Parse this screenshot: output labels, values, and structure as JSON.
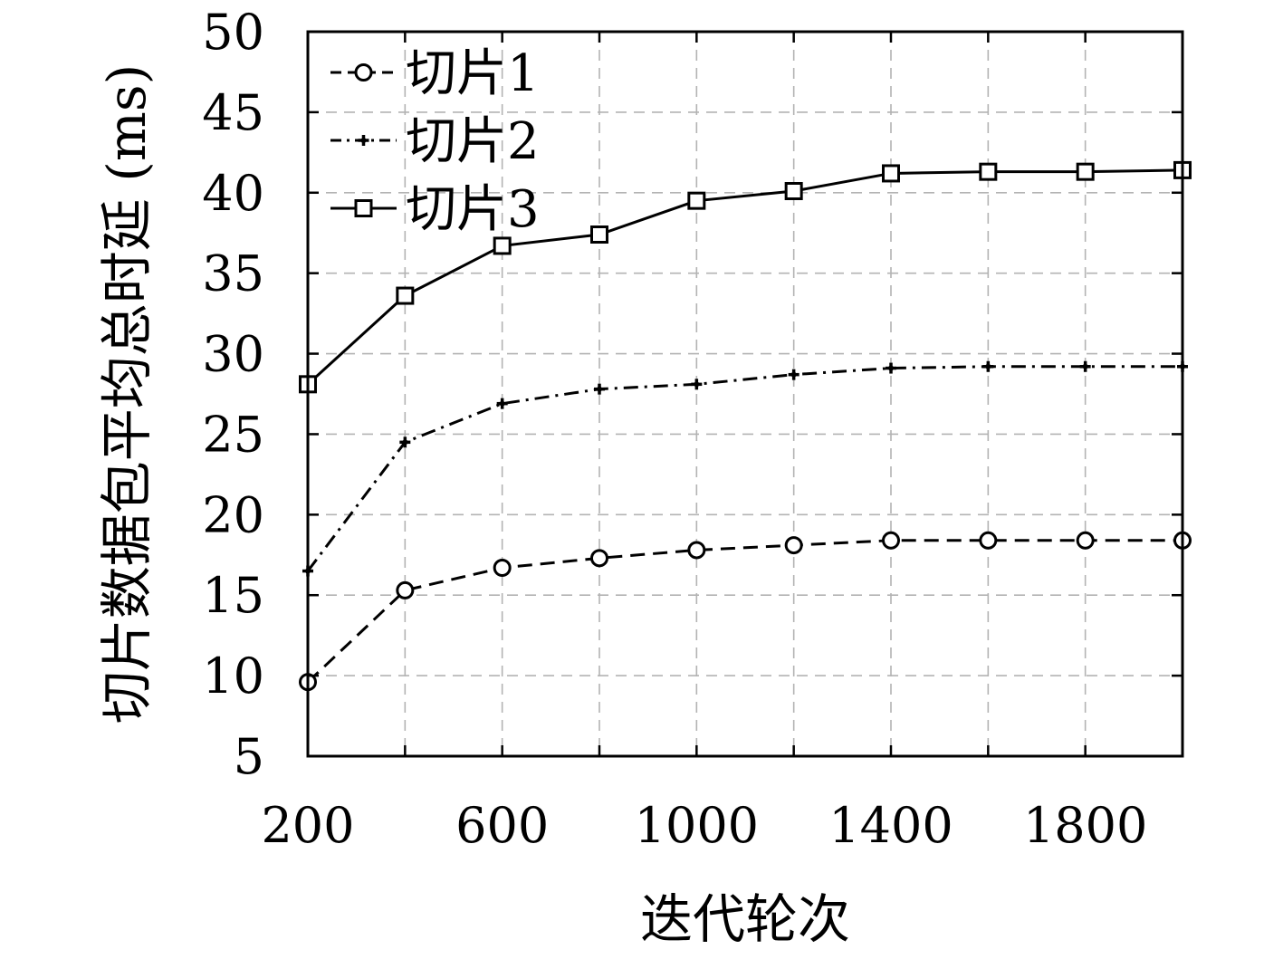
{
  "chart_data": {
    "type": "line",
    "xlabel": "迭代轮次",
    "ylabel": "切片数据包平均总时延 (ms)",
    "xlim": [
      200,
      2000
    ],
    "ylim": [
      5,
      50
    ],
    "xticks": [
      200,
      600,
      1000,
      1400,
      1800
    ],
    "yticks": [
      5,
      10,
      15,
      20,
      25,
      30,
      35,
      40,
      45,
      50
    ],
    "grid": true,
    "legend_position": "top-left",
    "x": [
      200,
      400,
      600,
      800,
      1000,
      1200,
      1400,
      1600,
      1800,
      2000
    ],
    "series": [
      {
        "name": "切片1",
        "line_style": "dashed",
        "marker": "circle",
        "values": [
          9.6,
          15.3,
          16.7,
          17.3,
          17.8,
          18.1,
          18.4,
          18.4,
          18.4,
          18.4
        ]
      },
      {
        "name": "切片2",
        "line_style": "dash-dot",
        "marker": "plus",
        "values": [
          16.5,
          24.5,
          26.9,
          27.8,
          28.1,
          28.7,
          29.1,
          29.2,
          29.2,
          29.2
        ]
      },
      {
        "name": "切片3",
        "line_style": "solid",
        "marker": "square",
        "values": [
          28.1,
          33.6,
          36.7,
          37.4,
          39.5,
          40.1,
          41.2,
          41.3,
          41.3,
          41.4
        ]
      }
    ]
  }
}
